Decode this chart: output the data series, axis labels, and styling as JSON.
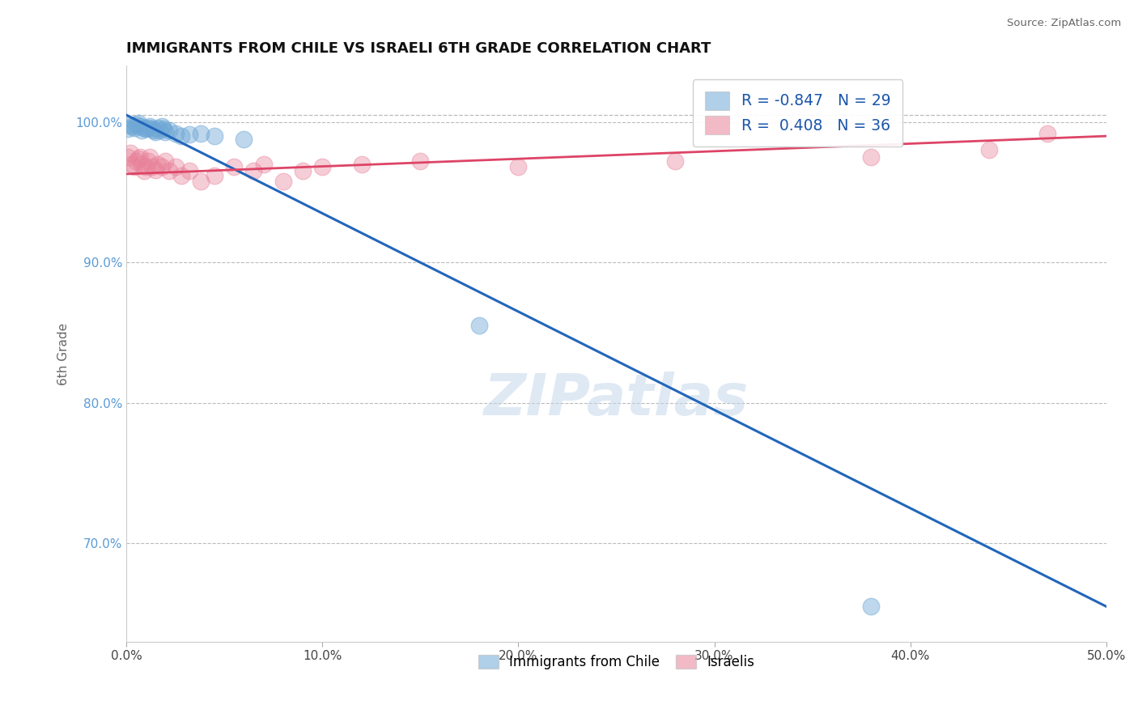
{
  "title": "IMMIGRANTS FROM CHILE VS ISRAELI 6TH GRADE CORRELATION CHART",
  "source": "Source: ZipAtlas.com",
  "xlabel": "",
  "ylabel": "6th Grade",
  "xlim": [
    0.0,
    0.5
  ],
  "ylim": [
    0.63,
    1.04
  ],
  "xticks": [
    0.0,
    0.1,
    0.2,
    0.3,
    0.4,
    0.5
  ],
  "xtick_labels": [
    "0.0%",
    "10.0%",
    "20.0%",
    "30.0%",
    "40.0%",
    "50.0%"
  ],
  "yticks": [
    0.7,
    0.8,
    0.9,
    1.0
  ],
  "ytick_labels": [
    "70.0%",
    "80.0%",
    "90.0%",
    "100.0%"
  ],
  "blue_color": "#6fa8d6",
  "pink_color": "#e8829a",
  "blue_line_color": "#2266bb",
  "pink_line_color": "#dd4466",
  "blue_R": -0.847,
  "blue_N": 29,
  "pink_R": 0.408,
  "pink_N": 36,
  "blue_scatter_x": [
    0.001,
    0.002,
    0.003,
    0.004,
    0.005,
    0.006,
    0.007,
    0.008,
    0.009,
    0.01,
    0.011,
    0.012,
    0.013,
    0.014,
    0.015,
    0.016,
    0.017,
    0.018,
    0.019,
    0.02,
    0.022,
    0.025,
    0.028,
    0.032,
    0.038,
    0.045,
    0.06,
    0.18,
    0.38
  ],
  "blue_scatter_y": [
    0.995,
    0.998,
    0.997,
    0.996,
    0.998,
    0.999,
    0.997,
    0.994,
    0.996,
    0.995,
    0.996,
    0.997,
    0.995,
    0.994,
    0.993,
    0.996,
    0.994,
    0.997,
    0.995,
    0.993,
    0.994,
    0.992,
    0.99,
    0.991,
    0.992,
    0.99,
    0.988,
    0.855,
    0.655
  ],
  "pink_scatter_x": [
    0.001,
    0.002,
    0.003,
    0.004,
    0.005,
    0.006,
    0.007,
    0.008,
    0.009,
    0.01,
    0.011,
    0.012,
    0.013,
    0.015,
    0.016,
    0.018,
    0.02,
    0.022,
    0.025,
    0.028,
    0.032,
    0.038,
    0.045,
    0.055,
    0.065,
    0.07,
    0.08,
    0.09,
    0.1,
    0.12,
    0.15,
    0.2,
    0.28,
    0.38,
    0.44,
    0.47
  ],
  "pink_scatter_y": [
    0.975,
    0.978,
    0.97,
    0.968,
    0.972,
    0.974,
    0.975,
    0.97,
    0.965,
    0.968,
    0.972,
    0.975,
    0.968,
    0.966,
    0.97,
    0.968,
    0.972,
    0.965,
    0.968,
    0.962,
    0.965,
    0.958,
    0.962,
    0.968,
    0.965,
    0.97,
    0.958,
    0.965,
    0.968,
    0.97,
    0.972,
    0.968,
    0.972,
    0.975,
    0.98,
    0.992
  ],
  "dashed_line_y": 1.005,
  "watermark_text": "ZIPatlas",
  "background_color": "#ffffff",
  "grid_color": "#bbbbbb"
}
